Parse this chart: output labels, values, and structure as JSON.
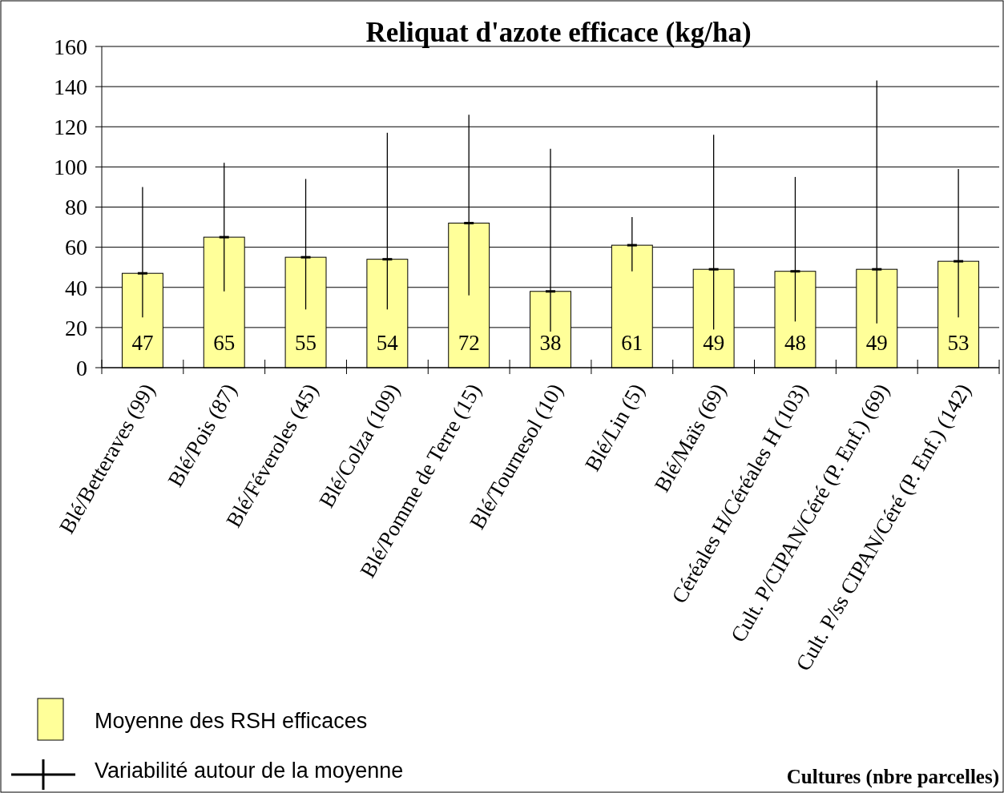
{
  "chart_data": {
    "type": "bar",
    "title": "Reliquat d'azote efficace (kg/ha)",
    "xlabel": "Cultures (nbre parcelles)",
    "categories": [
      "Blé/Betteraves (99)",
      "Blé/Pois (87)",
      "Blé/Féveroles (45)",
      "Blé/Colza (109)",
      "Blé/Pomme de Terre (15)",
      "Blé/Tournesol (10)",
      "Blé/Lin (5)",
      "Blé/Maïs (69)",
      "Céréales H/Céréales H (103)",
      "Cult. P/CIPAN/Céré (P. Enf.) (69)",
      "Cult. P/ss CIPAN/Céré (P. Enf.) (142)"
    ],
    "series": [
      {
        "name": "Moyenne des RSH efficaces",
        "color": "#ffff99",
        "values": [
          47,
          65,
          55,
          54,
          72,
          38,
          61,
          49,
          48,
          49,
          53
        ],
        "errors": [
          [
            25,
            90
          ],
          [
            38,
            102
          ],
          [
            29,
            94
          ],
          [
            29,
            117
          ],
          [
            36,
            126
          ],
          [
            18,
            109
          ],
          [
            48,
            75
          ],
          [
            19,
            116
          ],
          [
            23,
            95
          ],
          [
            22,
            143
          ],
          [
            25,
            99
          ]
        ]
      }
    ],
    "annotations": [
      "Variabilité autour de la moyenne"
    ],
    "ylim": [
      0,
      160
    ],
    "yticks": [
      0,
      20,
      40,
      60,
      80,
      100,
      120,
      140,
      160
    ],
    "grid": "y",
    "data_labels": true,
    "legend": "bottom left"
  }
}
